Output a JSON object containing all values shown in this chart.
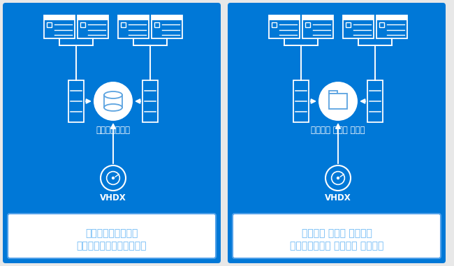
{
  "bg_color": "#0078D7",
  "white": "#FFFFFF",
  "light_blue": "#5BA3E0",
  "light_blue_text": "#6BB8F5",
  "outer_bg": "#E8E8E8",
  "panel1_label_line1": "ブロック記憶域上の",
  "panel1_label_line2": "クラスター共有ボリューム",
  "panel2_label_line1": "ファイル ベース 記憶域の",
  "panel2_label_line2": "スケールアウト ファイル サーバー",
  "block_storage_label": "ブロック記憶域",
  "file_storage_label": "ファイル ベース 記憶域",
  "vhdx_label": "VHDX"
}
